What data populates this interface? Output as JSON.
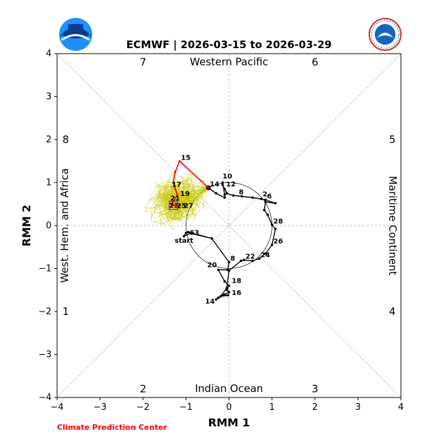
{
  "chart_data": {
    "type": "line",
    "title": "ECMWF | 2026-03-15 to 2026-03-29",
    "xlabel": "RMM 1",
    "ylabel": "RMM 2",
    "xlim": [
      -4,
      4
    ],
    "ylim": [
      -4,
      4
    ],
    "xticks": [
      "−4",
      "−3",
      "−2",
      "−1",
      "0",
      "1",
      "2",
      "3",
      "4"
    ],
    "yticks": [
      "−4",
      "−3",
      "−2",
      "−1",
      "0",
      "1",
      "2",
      "3",
      "4"
    ],
    "phases": [
      {
        "label": "1",
        "x": -3.8,
        "y": -2.0
      },
      {
        "label": "2",
        "x": -2.0,
        "y": -3.8
      },
      {
        "label": "3",
        "x": 2.0,
        "y": -3.8
      },
      {
        "label": "4",
        "x": 3.8,
        "y": -2.0
      },
      {
        "label": "5",
        "x": 3.8,
        "y": 2.0
      },
      {
        "label": "6",
        "x": 2.0,
        "y": 3.8
      },
      {
        "label": "7",
        "x": -2.0,
        "y": 3.8
      },
      {
        "label": "8",
        "x": -3.8,
        "y": 2.0
      }
    ],
    "regions": {
      "top": "Western Pacific",
      "bottom": "Indian Ocean",
      "left": "West. Hem. and Africa",
      "right": "Maritime Continent"
    },
    "credit": "Climate Prediction Center",
    "logos": {
      "left": "noaa-logo",
      "right": "nws-logo"
    },
    "colors": {
      "observed": "#000000",
      "forecast_mean": "#ff0000",
      "ensemble": "#c8c800",
      "end_marker": "#8a2be2"
    },
    "observed": [
      {
        "label": "start",
        "x": -0.4,
        "y": -0.3
      },
      {
        "x": -0.9,
        "y": -0.18
      },
      {
        "x": -1.05,
        "y": -0.25
      },
      {
        "x": -1.0,
        "y": -0.17
      },
      {
        "label": "63",
        "x": -0.95,
        "y": -0.15
      },
      {
        "x": -0.4,
        "y": -0.3
      },
      {
        "x": 0.0,
        "y": -0.85
      },
      {
        "label": "8",
        "x": 0.0,
        "y": -0.85
      },
      {
        "x": -0.03,
        "y": -1.03
      },
      {
        "label": "20",
        "x": -0.25,
        "y": -1.03
      },
      {
        "x": -0.1,
        "y": -1.3
      },
      {
        "label": "18",
        "x": 0.0,
        "y": -1.4
      },
      {
        "x": -0.05,
        "y": -1.5
      },
      {
        "label": "16",
        "x": 0.0,
        "y": -1.55
      },
      {
        "x": -0.1,
        "y": -1.6
      },
      {
        "x": -0.25,
        "y": -1.68
      },
      {
        "label": "14",
        "x": -0.3,
        "y": -1.72
      },
      {
        "x": -0.15,
        "y": -1.62
      },
      {
        "x": -0.02,
        "y": -1.62
      },
      {
        "x": -0.2,
        "y": -1.65
      },
      {
        "x": -0.05,
        "y": -1.45
      },
      {
        "x": 0.0,
        "y": -1.05
      },
      {
        "x": 0.28,
        "y": -0.82
      },
      {
        "label": "22",
        "x": 0.35,
        "y": -0.8
      },
      {
        "x": 0.55,
        "y": -0.82
      },
      {
        "label": "24",
        "x": 0.7,
        "y": -0.77
      },
      {
        "x": 0.85,
        "y": -0.65
      },
      {
        "label": "26",
        "x": 1.0,
        "y": -0.45
      },
      {
        "x": 1.08,
        "y": -0.08
      },
      {
        "label": "28",
        "x": 1.0,
        "y": 0.02
      },
      {
        "x": 0.9,
        "y": 0.25
      },
      {
        "x": 0.82,
        "y": 0.36
      },
      {
        "x": 0.85,
        "y": 0.55
      },
      {
        "x": 1.08,
        "y": 0.52
      },
      {
        "label": "6",
        "x": 0.85,
        "y": 0.6
      },
      {
        "label": "2",
        "x": 0.75,
        "y": 0.62
      },
      {
        "x": 0.55,
        "y": 0.65
      },
      {
        "x": 0.3,
        "y": 0.68
      },
      {
        "label": "8",
        "x": 0.1,
        "y": 0.7
      },
      {
        "x": -0.05,
        "y": 0.75
      },
      {
        "label": "12",
        "x": -0.1,
        "y": 0.85
      },
      {
        "x": -0.15,
        "y": 0.95
      },
      {
        "label": "10",
        "x": -0.15,
        "y": 1.0
      },
      {
        "x": -0.1,
        "y": 0.72
      },
      {
        "x": -0.1,
        "y": 0.65
      },
      {
        "x": -0.3,
        "y": 0.75
      },
      {
        "label": "14",
        "x": -0.48,
        "y": 0.88
      }
    ],
    "forecast_mean": [
      {
        "label": "14",
        "x": -0.48,
        "y": 0.88
      },
      {
        "label": "15",
        "x": -1.15,
        "y": 1.5
      },
      {
        "x": -1.25,
        "y": 1.25
      },
      {
        "label": "17",
        "x": -1.3,
        "y": 1.0
      },
      {
        "x": -1.25,
        "y": 0.85
      },
      {
        "label": "19",
        "x": -1.2,
        "y": 0.72
      },
      {
        "label": "21",
        "x": -1.3,
        "y": 0.55
      },
      {
        "x": -1.35,
        "y": 0.5
      },
      {
        "label": "23",
        "x": -1.3,
        "y": 0.48
      },
      {
        "label": "25",
        "x": -1.25,
        "y": 0.47
      },
      {
        "label": "27",
        "x": -1.15,
        "y": 0.47
      }
    ],
    "unit_circle": {
      "radius": 1
    }
  }
}
